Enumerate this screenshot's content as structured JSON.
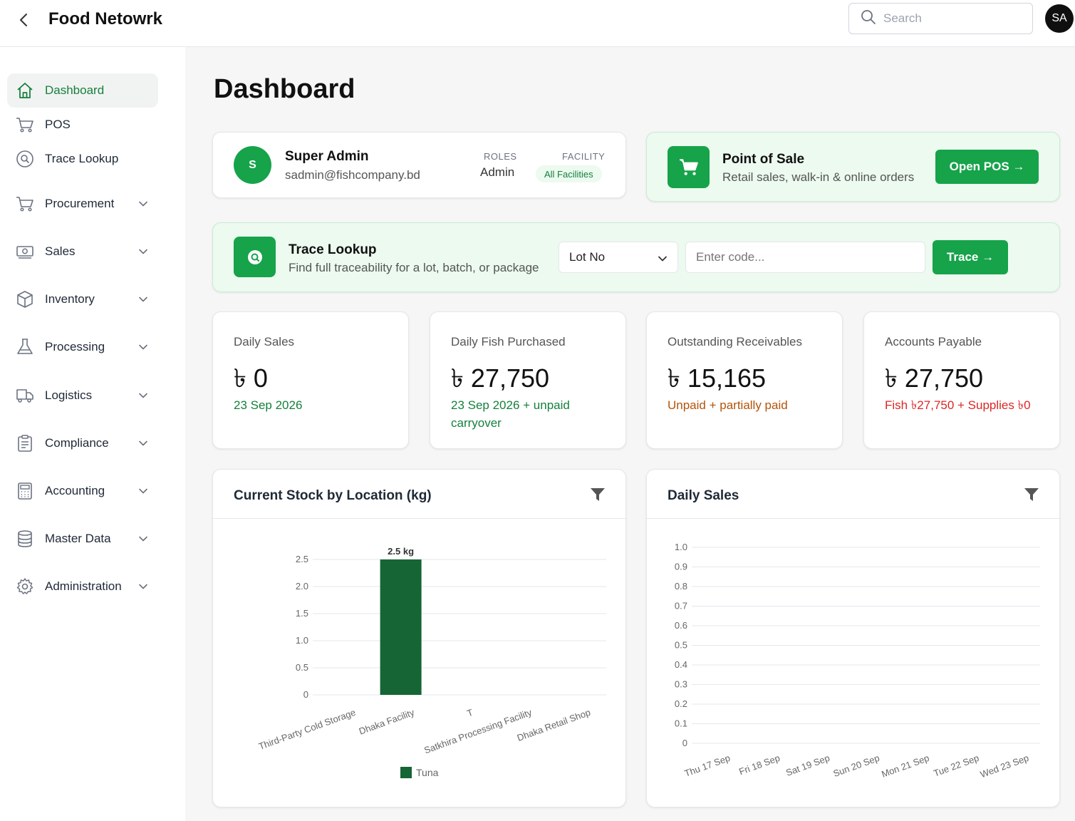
{
  "header": {
    "app_title": "Food Netowrk",
    "search_placeholder": "Search",
    "avatar_initials": "SA"
  },
  "sidebar": {
    "items": [
      {
        "label": "Dashboard",
        "icon": "home-icon",
        "active": true
      },
      {
        "label": "POS",
        "icon": "cart-icon"
      },
      {
        "label": "Trace Lookup",
        "icon": "search-circle-icon"
      },
      {
        "label": "Procurement",
        "icon": "cart-icon",
        "expandable": true
      },
      {
        "label": "Sales",
        "icon": "cash-icon",
        "expandable": true
      },
      {
        "label": "Inventory",
        "icon": "box-icon",
        "expandable": true
      },
      {
        "label": "Processing",
        "icon": "flask-icon",
        "expandable": true
      },
      {
        "label": "Logistics",
        "icon": "truck-icon",
        "expandable": true
      },
      {
        "label": "Compliance",
        "icon": "clipboard-icon",
        "expandable": true
      },
      {
        "label": "Accounting",
        "icon": "calculator-icon",
        "expandable": true
      },
      {
        "label": "Master Data",
        "icon": "database-icon",
        "expandable": true
      },
      {
        "label": "Administration",
        "icon": "gear-icon",
        "expandable": true
      }
    ]
  },
  "page": {
    "title": "Dashboard"
  },
  "user_card": {
    "avatar_letter": "S",
    "name": "Super Admin",
    "email": "sadmin@fishcompany.bd",
    "roles_label": "ROLES",
    "roles_value": "Admin",
    "facility_label": "FACILITY",
    "facility_value": "All Facilities"
  },
  "pos_card": {
    "title": "Point of Sale",
    "subtitle": "Retail sales, walk-in & online orders",
    "button": "Open POS →"
  },
  "trace_card": {
    "title": "Trace Lookup",
    "subtitle": "Find full traceability for a lot, batch, or package",
    "select_value": "Lot No",
    "input_placeholder": "Enter code...",
    "button": "Trace →"
  },
  "stats": [
    {
      "label": "Daily Sales",
      "value": "৳ 0",
      "sub": "23 Sep 2026",
      "sub_color": "#15803d"
    },
    {
      "label": "Daily Fish Purchased",
      "value": "৳ 27,750",
      "sub": "23 Sep 2026 + unpaid carryover",
      "sub_color": "#15803d"
    },
    {
      "label": "Outstanding Receivables",
      "value": "৳ 15,165",
      "sub": "Unpaid + partially paid",
      "sub_color": "#b45309"
    },
    {
      "label": "Accounts Payable",
      "value": "৳ 27,750",
      "sub": "Fish ৳27,750 + Supplies ৳0",
      "sub_color": "#dc2626"
    }
  ],
  "chart_data": [
    {
      "type": "bar",
      "title": "Current Stock by Location (kg)",
      "categories": [
        "Third-Party Cold Storage",
        "Dhaka Facility",
        "T",
        "Satkhira Processing Facility",
        "Dhaka Retail Shop"
      ],
      "series": [
        {
          "name": "Tuna",
          "values": [
            0,
            2.5,
            0,
            0,
            0
          ],
          "color": "#166534"
        }
      ],
      "data_labels": [
        "",
        "2.5 kg",
        "",
        "",
        ""
      ],
      "yticks": [
        "0",
        "0.5",
        "1.0",
        "1.5",
        "2.0",
        "2.5"
      ],
      "ylim": [
        0,
        2.5
      ],
      "grid": true,
      "legend": "bottom"
    },
    {
      "type": "line",
      "title": "Daily Sales",
      "categories": [
        "Thu 17 Sep",
        "Fri 18 Sep",
        "Sat 19 Sep",
        "Sun 20 Sep",
        "Mon 21 Sep",
        "Tue 22 Sep",
        "Wed 23 Sep"
      ],
      "series": [],
      "yticks": [
        "0",
        "0.1",
        "0.2",
        "0.3",
        "0.4",
        "0.5",
        "0.6",
        "0.7",
        "0.8",
        "0.9",
        "1.0"
      ],
      "ylim": [
        0,
        1
      ],
      "grid": true
    }
  ]
}
